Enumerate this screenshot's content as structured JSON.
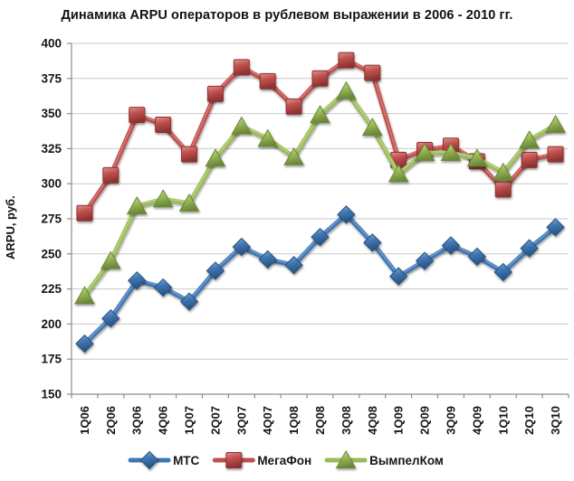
{
  "chart_data": {
    "type": "line",
    "title": "Динамика ARPU операторов в рублевом выражении в 2006 - 2010 гг.",
    "xlabel": "",
    "ylabel": "ARPU, руб.",
    "ylim": [
      150,
      400
    ],
    "y_step": 25,
    "y_ticks": [
      400,
      375,
      350,
      325,
      300,
      275,
      250,
      225,
      200,
      175,
      150
    ],
    "grid": true,
    "legend_position": "bottom",
    "categories": [
      "1Q06",
      "2Q06",
      "3Q06",
      "4Q06",
      "1Q07",
      "2Q07",
      "3Q07",
      "4Q07",
      "1Q08",
      "2Q08",
      "3Q08",
      "4Q08",
      "1Q09",
      "2Q09",
      "3Q09",
      "4Q09",
      "1Q10",
      "2Q10",
      "3Q10"
    ],
    "series": [
      {
        "name": "МТС",
        "marker": "diamond",
        "color": "#3F76B4",
        "color_light": "#82AEDC",
        "color_dark": "#28527F",
        "values": [
          186,
          204,
          231,
          226,
          216,
          238,
          255,
          246,
          242,
          262,
          278,
          258,
          234,
          245,
          256,
          248,
          237,
          254,
          269
        ]
      },
      {
        "name": "МегаФон",
        "marker": "square",
        "color": "#C0504D",
        "color_light": "#E0908D",
        "color_dark": "#8C3330",
        "values": [
          279,
          306,
          349,
          342,
          321,
          364,
          383,
          373,
          355,
          375,
          388,
          379,
          317,
          324,
          327,
          316,
          296,
          317,
          321
        ]
      },
      {
        "name": "ВымпелКом",
        "marker": "triangle",
        "color": "#9BBB59",
        "color_light": "#C8DC96",
        "color_dark": "#6B8838",
        "values": [
          220,
          245,
          284,
          289,
          286,
          318,
          341,
          332,
          319,
          349,
          366,
          340,
          307,
          322,
          322,
          318,
          308,
          331,
          342
        ]
      }
    ],
    "colors": {
      "gridline": "#C9C9C9",
      "axis": "#8C8C8C",
      "text": "#161616"
    }
  }
}
